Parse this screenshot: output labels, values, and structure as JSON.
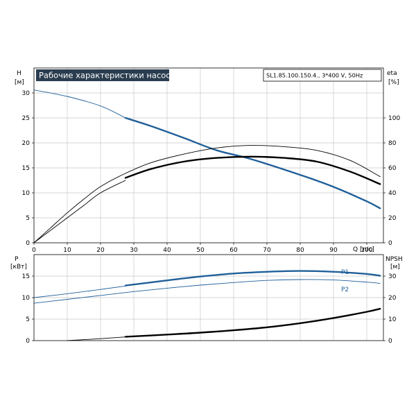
{
  "header": {
    "title": "Рабочие характеристики насоса",
    "model": "SL1.85.100.150.4., 3*400 V, 50Hz"
  },
  "colors": {
    "title_bg": "#2a3d4f",
    "grid": "#c8c8c8",
    "curve_blue": "#1f5f99",
    "curve_black": "#000000"
  },
  "chart_data": [
    {
      "type": "line",
      "name": "upper",
      "title": "Рабочие характеристики насоса",
      "xlabel": "Q [л/с]",
      "ylabel_left": [
        "H",
        "[м]"
      ],
      "ylabel_right": [
        "eta",
        "[%]"
      ],
      "xlim": [
        0,
        105
      ],
      "x_ticks": [
        0,
        10,
        20,
        30,
        40,
        50,
        60,
        70,
        80,
        90,
        100
      ],
      "ylim_left": [
        0,
        35
      ],
      "y_ticks_left": [
        0,
        5,
        10,
        15,
        20,
        25,
        30
      ],
      "ylim_right": [
        0,
        140
      ],
      "y_ticks_right": [
        0,
        20,
        40,
        60,
        80,
        100
      ],
      "grid": true,
      "series": [
        {
          "axis": "left",
          "color": "#1f5f99",
          "style": "thin",
          "points": [
            [
              0,
              30.6
            ],
            [
              10,
              29.3
            ],
            [
              20,
              27.4
            ],
            [
              27.5,
              25.0
            ]
          ]
        },
        {
          "axis": "left",
          "color": "#1f5f99",
          "style": "bold",
          "points": [
            [
              27.5,
              25.0
            ],
            [
              35,
              23.4
            ],
            [
              45,
              21.0
            ],
            [
              55,
              18.5
            ],
            [
              65,
              16.8
            ],
            [
              80,
              13.6
            ],
            [
              90,
              11.2
            ],
            [
              100,
              8.3
            ],
            [
              104,
              6.9
            ]
          ]
        },
        {
          "axis": "right",
          "color": "#000000",
          "style": "thin",
          "points": [
            [
              0,
              0
            ],
            [
              5,
              12
            ],
            [
              10,
              24
            ],
            [
              15,
              35
            ],
            [
              20,
              45
            ],
            [
              27,
              55
            ],
            [
              35,
              64
            ],
            [
              45,
              71
            ],
            [
              55,
              76
            ],
            [
              65,
              78
            ],
            [
              75,
              77
            ],
            [
              85,
              74
            ],
            [
              95,
              66
            ],
            [
              104,
              53
            ]
          ]
        },
        {
          "axis": "right",
          "color": "#000000",
          "style": "thin",
          "points": [
            [
              0,
              0
            ],
            [
              5,
              10
            ],
            [
              10,
              20
            ],
            [
              15,
              30
            ],
            [
              20,
              40
            ],
            [
              27.5,
              50
            ]
          ]
        },
        {
          "axis": "right",
          "color": "#000000",
          "style": "bold",
          "points": [
            [
              27.5,
              52
            ],
            [
              35,
              59
            ],
            [
              45,
              65
            ],
            [
              55,
              68
            ],
            [
              65,
              69
            ],
            [
              75,
              68
            ],
            [
              85,
              65
            ],
            [
              95,
              57
            ],
            [
              104,
              47
            ]
          ]
        }
      ]
    },
    {
      "type": "line",
      "name": "lower",
      "xlim": [
        0,
        105
      ],
      "ylabel_left": [
        "P",
        "[кВт]"
      ],
      "ylabel_right": [
        "NPSH",
        "[м]"
      ],
      "ylim_left": [
        0,
        20
      ],
      "y_ticks_left": [
        0,
        5,
        10,
        15
      ],
      "ylim_right": [
        0,
        40
      ],
      "y_ticks_right": [
        0,
        10,
        20,
        30
      ],
      "grid": true,
      "series": [
        {
          "name": "P1",
          "axis": "left",
          "color": "#1f5f99",
          "style": "thin",
          "points": [
            [
              0,
              10.0
            ],
            [
              10,
              10.9
            ],
            [
              20,
              11.9
            ],
            [
              27.5,
              12.7
            ]
          ]
        },
        {
          "name": "P1",
          "axis": "left",
          "color": "#1f5f99",
          "style": "bold",
          "points": [
            [
              27.5,
              12.8
            ],
            [
              40,
              14.0
            ],
            [
              50,
              14.9
            ],
            [
              60,
              15.6
            ],
            [
              70,
              16.0
            ],
            [
              80,
              16.2
            ],
            [
              90,
              16.0
            ],
            [
              100,
              15.5
            ],
            [
              104,
              15.1
            ]
          ]
        },
        {
          "name": "P2",
          "axis": "left",
          "color": "#1f5f99",
          "style": "thin",
          "points": [
            [
              0,
              8.7
            ],
            [
              10,
              9.6
            ],
            [
              20,
              10.5
            ],
            [
              30,
              11.4
            ],
            [
              40,
              12.2
            ],
            [
              50,
              12.9
            ],
            [
              60,
              13.5
            ],
            [
              70,
              14.0
            ],
            [
              80,
              14.2
            ],
            [
              90,
              14.1
            ],
            [
              100,
              13.6
            ],
            [
              104,
              13.3
            ]
          ]
        },
        {
          "axis": "right",
          "color": "#000000",
          "style": "thin",
          "points": [
            [
              10,
              0
            ],
            [
              20,
              0.9
            ],
            [
              27.5,
              1.7
            ]
          ]
        },
        {
          "axis": "right",
          "color": "#000000",
          "style": "bold",
          "points": [
            [
              27.5,
              1.8
            ],
            [
              40,
              2.8
            ],
            [
              50,
              3.7
            ],
            [
              60,
              4.8
            ],
            [
              70,
              6.2
            ],
            [
              80,
              8.1
            ],
            [
              90,
              10.5
            ],
            [
              100,
              13.4
            ],
            [
              104,
              14.8
            ]
          ]
        }
      ],
      "labels": [
        "P1",
        "P2"
      ]
    }
  ]
}
